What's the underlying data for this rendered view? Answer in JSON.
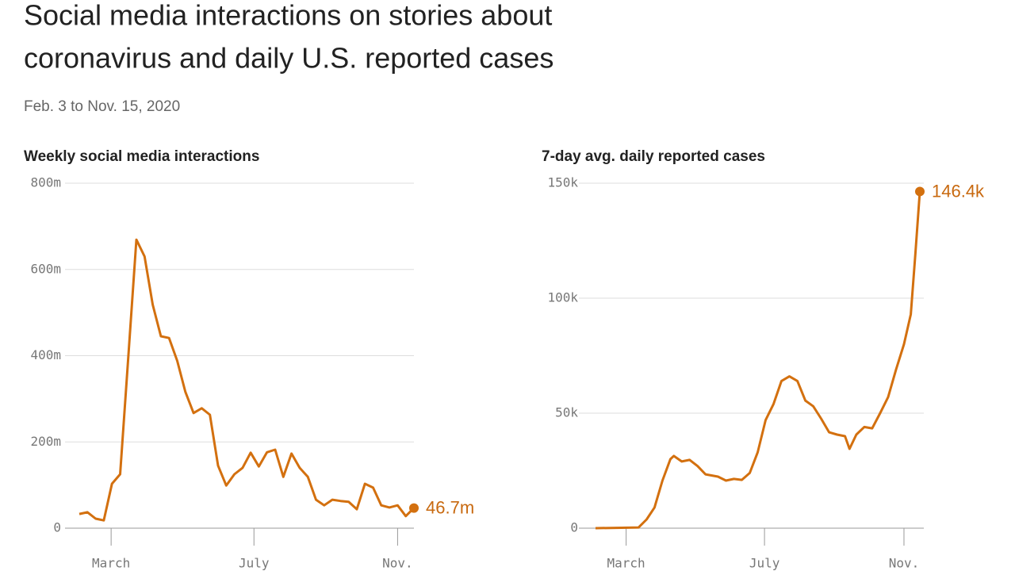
{
  "title": [
    "Social media interactions on stories about",
    "coronavirus and daily U.S. reported cases"
  ],
  "subtitle": "Feb. 3 to Nov. 15, 2020",
  "chart_data": [
    {
      "type": "line",
      "title": "Weekly social media interactions",
      "color": "#d3700f",
      "values": [
        33,
        37,
        22,
        18,
        103,
        125,
        397,
        669,
        630,
        518,
        445,
        441,
        388,
        316,
        267,
        278,
        263,
        145,
        99,
        125,
        140,
        175,
        143,
        176,
        182,
        119,
        173,
        140,
        119,
        66,
        53,
        66,
        63,
        61,
        44,
        103,
        94,
        53,
        48,
        53,
        28,
        46.7
      ],
      "value_labels": [
        null,
        null,
        null,
        null,
        null,
        null,
        null,
        null,
        null,
        null,
        null,
        null,
        null,
        null,
        null,
        null,
        null,
        null,
        null,
        null,
        null,
        null,
        null,
        null,
        null,
        null,
        null,
        null,
        null,
        null,
        null,
        null,
        null,
        null,
        null,
        null,
        null,
        null,
        null,
        null,
        null,
        "46.7m"
      ],
      "xlim": [
        0,
        41
      ],
      "xticks": [
        {
          "value": 3.9,
          "label": "March"
        },
        {
          "value": 21.4,
          "label": "July"
        },
        {
          "value": 39,
          "label": "Nov."
        }
      ],
      "ylim": [
        0,
        800
      ],
      "yticks": [
        0,
        {
          "value": 200,
          "label": "200m"
        },
        {
          "value": 400,
          "label": "400m"
        },
        {
          "value": 600,
          "label": "600m"
        },
        {
          "value": 800,
          "label": "800m"
        }
      ],
      "grid": true
    },
    {
      "type": "line",
      "title": "7-day avg. daily reported cases",
      "color": "#d3700f",
      "x": [
        0,
        38,
        45,
        52,
        59,
        66,
        69,
        76,
        83,
        90,
        97,
        108,
        115,
        122,
        129,
        136,
        143,
        150,
        157,
        164,
        171,
        178,
        185,
        192,
        199,
        206,
        213,
        220,
        224,
        230,
        237,
        244,
        251,
        258,
        265,
        272,
        278,
        282,
        286
      ],
      "values": [
        0,
        0.3,
        3.8,
        9,
        20.7,
        30,
        31.4,
        29,
        29.7,
        27,
        23.4,
        22.4,
        20.7,
        21.4,
        21,
        24,
        33,
        47,
        54,
        64,
        66,
        64,
        55.5,
        53,
        47.6,
        41.7,
        40.7,
        40,
        34.5,
        40.7,
        44,
        43.4,
        50,
        57,
        69,
        80,
        93,
        119,
        146.4
      ],
      "value_labels": [
        null,
        null,
        null,
        null,
        null,
        null,
        null,
        null,
        null,
        null,
        null,
        null,
        null,
        null,
        null,
        null,
        null,
        null,
        null,
        null,
        null,
        null,
        null,
        null,
        null,
        null,
        null,
        null,
        null,
        null,
        null,
        null,
        null,
        null,
        null,
        null,
        null,
        null,
        "146.4k"
      ],
      "xlim": [
        0,
        286
      ],
      "xticks": [
        {
          "value": 27,
          "label": "March"
        },
        {
          "value": 149,
          "label": "July"
        },
        {
          "value": 272,
          "label": "Nov."
        }
      ],
      "ylim": [
        0,
        150
      ],
      "yticks": [
        0,
        {
          "value": 50,
          "label": "50k"
        },
        {
          "value": 100,
          "label": "100k"
        },
        {
          "value": 150,
          "label": "150k"
        }
      ],
      "grid": true
    }
  ]
}
